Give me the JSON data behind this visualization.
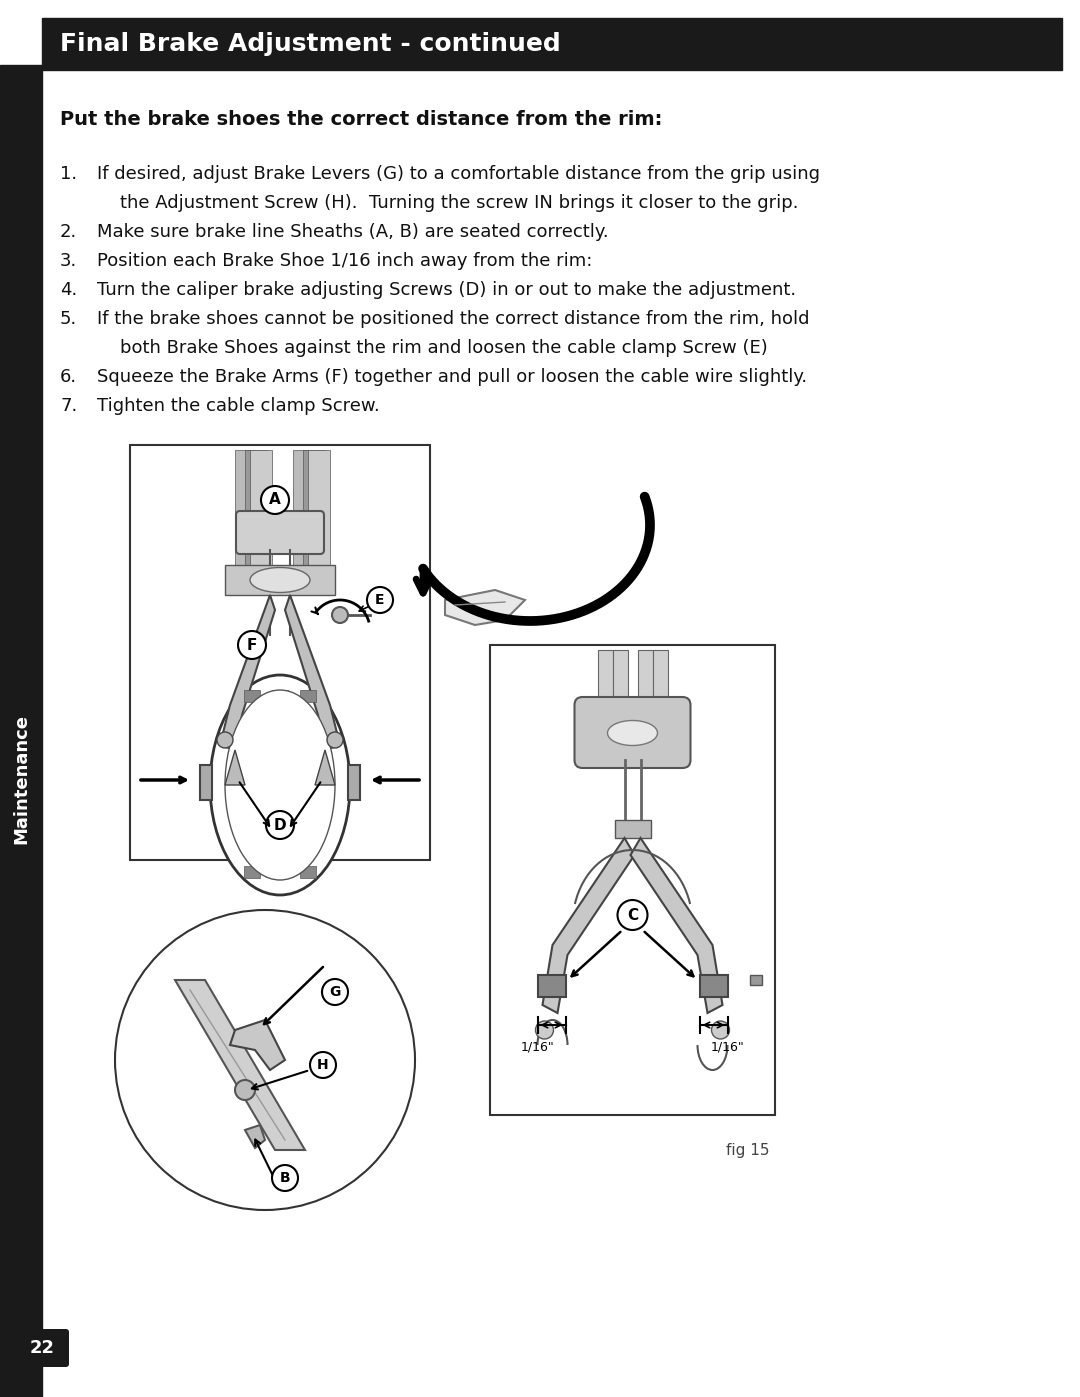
{
  "title": "Final Brake Adjustment - continued",
  "subtitle": "Put the brake shoes the correct distance from the rim:",
  "step1": "If desired, adjust Brake Levers (G) to a comfortable distance from the grip using",
  "step1b": "    the Adjustment Screw (H).  Turning the screw IN brings it closer to the grip.",
  "step2": "Make sure brake line Sheaths (A, B) are seated correctly.",
  "step3": "Position each Brake Shoe 1/16 inch away from the rim:",
  "step4": "Turn the caliper brake adjusting Screws (D) in or out to make the adjustment.",
  "step5": "If the brake shoes cannot be positioned the correct distance from the rim, hold",
  "step5b": "    both Brake Shoes against the rim and loosen the cable clamp Screw (E)",
  "step6": "Squeeze the Brake Arms (F) together and pull or loosen the cable wire slightly.",
  "step7": "Tighten the cable clamp Screw.",
  "page_number": "22",
  "fig_label": "fig 15",
  "sidebar_text": "Maintenance",
  "header_bg": "#1a1a1a",
  "header_text_color": "#ffffff",
  "bg_color": "#ffffff",
  "sidebar_bg": "#1a1a1a",
  "text_color": "#111111"
}
